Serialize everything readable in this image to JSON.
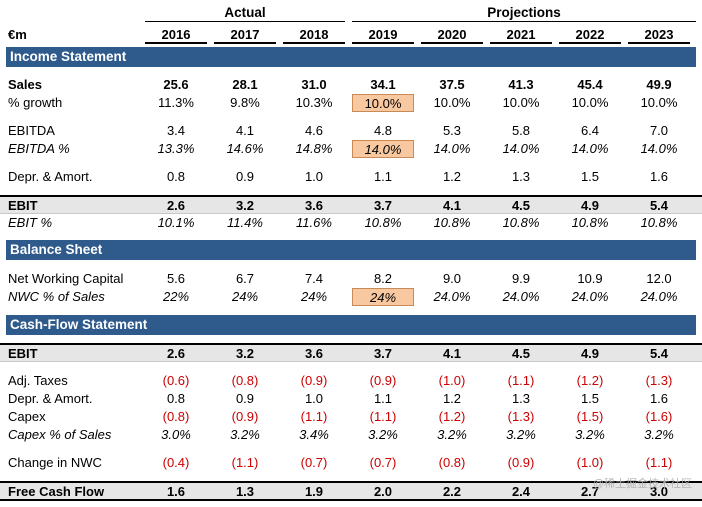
{
  "header": {
    "actual_label": "Actual",
    "projections_label": "Projections",
    "unit": "€m",
    "years": [
      "2016",
      "2017",
      "2018",
      "2019",
      "2020",
      "2021",
      "2022",
      "2023"
    ]
  },
  "sections": {
    "income": "Income Statement",
    "balance": "Balance Sheet",
    "cashflow": "Cash-Flow Statement"
  },
  "rows": {
    "sales": {
      "label": "Sales",
      "values": [
        "25.6",
        "28.1",
        "31.0",
        "34.1",
        "37.5",
        "41.3",
        "45.4",
        "49.9"
      ]
    },
    "growth": {
      "label": "% growth",
      "values": [
        "11.3%",
        "9.8%",
        "10.3%",
        "10.0%",
        "10.0%",
        "10.0%",
        "10.0%",
        "10.0%"
      ]
    },
    "ebitda": {
      "label": "EBITDA",
      "values": [
        "3.4",
        "4.1",
        "4.6",
        "4.8",
        "5.3",
        "5.8",
        "6.4",
        "7.0"
      ]
    },
    "ebitda_pct": {
      "label": "EBITDA %",
      "values": [
        "13.3%",
        "14.6%",
        "14.8%",
        "14.0%",
        "14.0%",
        "14.0%",
        "14.0%",
        "14.0%"
      ]
    },
    "da": {
      "label": "Depr. & Amort.",
      "values": [
        "0.8",
        "0.9",
        "1.0",
        "1.1",
        "1.2",
        "1.3",
        "1.5",
        "1.6"
      ]
    },
    "ebit": {
      "label": "EBIT",
      "values": [
        "2.6",
        "3.2",
        "3.6",
        "3.7",
        "4.1",
        "4.5",
        "4.9",
        "5.4"
      ]
    },
    "ebit_pct": {
      "label": "EBIT %",
      "values": [
        "10.1%",
        "11.4%",
        "11.6%",
        "10.8%",
        "10.8%",
        "10.8%",
        "10.8%",
        "10.8%"
      ]
    },
    "nwc": {
      "label": "Net Working Capital",
      "values": [
        "5.6",
        "6.7",
        "7.4",
        "8.2",
        "9.0",
        "9.9",
        "10.9",
        "12.0"
      ]
    },
    "nwc_pct": {
      "label": "NWC % of Sales",
      "values": [
        "22%",
        "24%",
        "24%",
        "24%",
        "24.0%",
        "24.0%",
        "24.0%",
        "24.0%"
      ]
    },
    "cf_ebit": {
      "label": "EBIT",
      "values": [
        "2.6",
        "3.2",
        "3.6",
        "3.7",
        "4.1",
        "4.5",
        "4.9",
        "5.4"
      ]
    },
    "taxes": {
      "label": "Adj. Taxes",
      "values": [
        "(0.6)",
        "(0.8)",
        "(0.9)",
        "(0.9)",
        "(1.0)",
        "(1.1)",
        "(1.2)",
        "(1.3)"
      ]
    },
    "cf_da": {
      "label": "Depr. & Amort.",
      "values": [
        "0.8",
        "0.9",
        "1.0",
        "1.1",
        "1.2",
        "1.3",
        "1.5",
        "1.6"
      ]
    },
    "capex": {
      "label": "Capex",
      "values": [
        "(0.8)",
        "(0.9)",
        "(1.1)",
        "(1.1)",
        "(1.2)",
        "(1.3)",
        "(1.5)",
        "(1.6)"
      ]
    },
    "capex_pct": {
      "label": "Capex % of Sales",
      "values": [
        "3.0%",
        "3.2%",
        "3.4%",
        "3.2%",
        "3.2%",
        "3.2%",
        "3.2%",
        "3.2%"
      ]
    },
    "chg_nwc": {
      "label": "Change in NWC",
      "values": [
        "(0.4)",
        "(1.1)",
        "(0.7)",
        "(0.7)",
        "(0.8)",
        "(0.9)",
        "(1.0)",
        "(1.1)"
      ]
    },
    "fcf": {
      "label": "Free Cash Flow",
      "values": [
        "1.6",
        "1.3",
        "1.9",
        "2.0",
        "2.2",
        "2.4",
        "2.7",
        "3.0"
      ]
    }
  },
  "colors": {
    "section_bg": "#2e5a8c",
    "highlight_bg": "#f8c9a1",
    "negative_text": "#cc0000",
    "total_bg": "#e6e6e6"
  },
  "watermark": "@稀土掘金技术社区"
}
